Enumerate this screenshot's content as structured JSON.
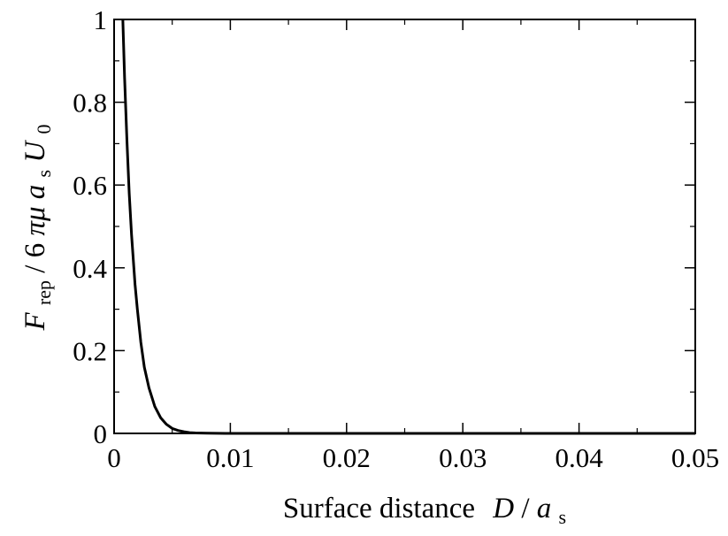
{
  "chart_data": {
    "type": "line",
    "title": "",
    "xlabel": {
      "text": "Surface distance",
      "var": "D",
      "slash": "/",
      "sym": "a",
      "sub": "s"
    },
    "ylabel": {
      "var": "F",
      "var_sub": "rep",
      "slash": " / 6",
      "greek": "πμ",
      "sym": "a",
      "sym_sub": "s",
      "vel": "U",
      "vel_sub": "0"
    },
    "xlim": [
      0,
      0.05
    ],
    "ylim": [
      0,
      1
    ],
    "xticks": [
      {
        "value": 0,
        "label": "0"
      },
      {
        "value": 0.01,
        "label": "0.01"
      },
      {
        "value": 0.02,
        "label": "0.02"
      },
      {
        "value": 0.03,
        "label": "0.03"
      },
      {
        "value": 0.04,
        "label": "0.04"
      },
      {
        "value": 0.05,
        "label": "0.05"
      }
    ],
    "yticks": [
      {
        "value": 0,
        "label": "0"
      },
      {
        "value": 0.2,
        "label": "0.2"
      },
      {
        "value": 0.4,
        "label": "0.4"
      },
      {
        "value": 0.6,
        "label": "0.6"
      },
      {
        "value": 0.8,
        "label": "0.8"
      },
      {
        "value": 1,
        "label": "1"
      }
    ],
    "grid": false,
    "series": [
      {
        "color": "#000000",
        "x": [
          0.00075,
          0.0009,
          0.0011,
          0.0013,
          0.0015,
          0.0018,
          0.002,
          0.0023,
          0.0026,
          0.003,
          0.0035,
          0.004,
          0.0045,
          0.005,
          0.0055,
          0.006,
          0.0065,
          0.007,
          0.008,
          0.01,
          0.02,
          0.03,
          0.04,
          0.05
        ],
        "y": [
          1.0,
          0.86,
          0.71,
          0.58,
          0.48,
          0.36,
          0.3,
          0.22,
          0.16,
          0.11,
          0.065,
          0.038,
          0.022,
          0.012,
          0.007,
          0.004,
          0.002,
          0.001,
          0.0004,
          0.0,
          0.0,
          0.0,
          0.0,
          0.0
        ]
      }
    ]
  }
}
